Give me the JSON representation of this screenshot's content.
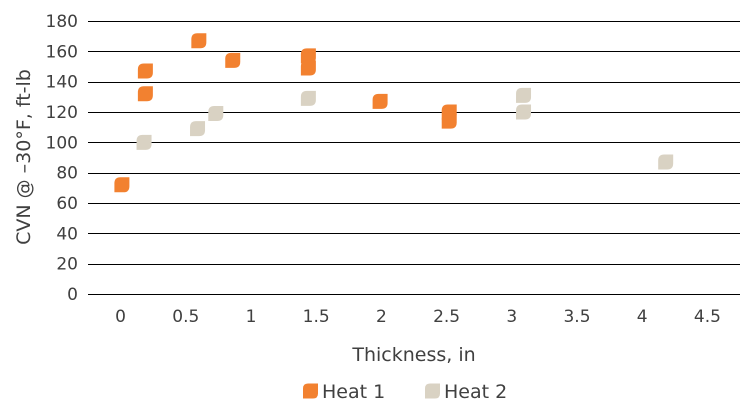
{
  "chart_data": {
    "type": "scatter",
    "title": "",
    "xlabel": "Thickness, in",
    "ylabel": "CVN @ –30°F, ft-lb",
    "xlim": [
      -0.25,
      4.75
    ],
    "ylim": [
      0,
      180
    ],
    "x_ticks": [
      0,
      0.5,
      1,
      1.5,
      2,
      2.5,
      3,
      3.5,
      4,
      4.5
    ],
    "x_tick_labels": [
      "0",
      "0.5",
      "1",
      "1.5",
      "2",
      "2.5",
      "3",
      "3.5",
      "4",
      "4.5"
    ],
    "y_ticks": [
      0,
      20,
      40,
      60,
      80,
      100,
      120,
      140,
      160,
      180
    ],
    "y_tick_labels": [
      "0",
      "20",
      "40",
      "60",
      "80",
      "100",
      "120",
      "140",
      "160",
      "180"
    ],
    "grid": true,
    "legend_position": "bottom",
    "series": [
      {
        "name": "Heat 1",
        "color": "#f28130",
        "points": [
          {
            "x": 0.01,
            "y": 72
          },
          {
            "x": 0.19,
            "y": 147
          },
          {
            "x": 0.19,
            "y": 132
          },
          {
            "x": 0.6,
            "y": 167
          },
          {
            "x": 0.86,
            "y": 154
          },
          {
            "x": 1.44,
            "y": 157
          },
          {
            "x": 1.44,
            "y": 149
          },
          {
            "x": 1.99,
            "y": 127
          },
          {
            "x": 2.52,
            "y": 120
          },
          {
            "x": 2.52,
            "y": 114
          }
        ]
      },
      {
        "name": "Heat 2",
        "color": "#d9d2c3",
        "points": [
          {
            "x": 0.18,
            "y": 100
          },
          {
            "x": 0.59,
            "y": 109
          },
          {
            "x": 0.73,
            "y": 119
          },
          {
            "x": 1.44,
            "y": 129
          },
          {
            "x": 3.09,
            "y": 131
          },
          {
            "x": 3.09,
            "y": 120
          },
          {
            "x": 4.18,
            "y": 87
          }
        ]
      }
    ]
  }
}
